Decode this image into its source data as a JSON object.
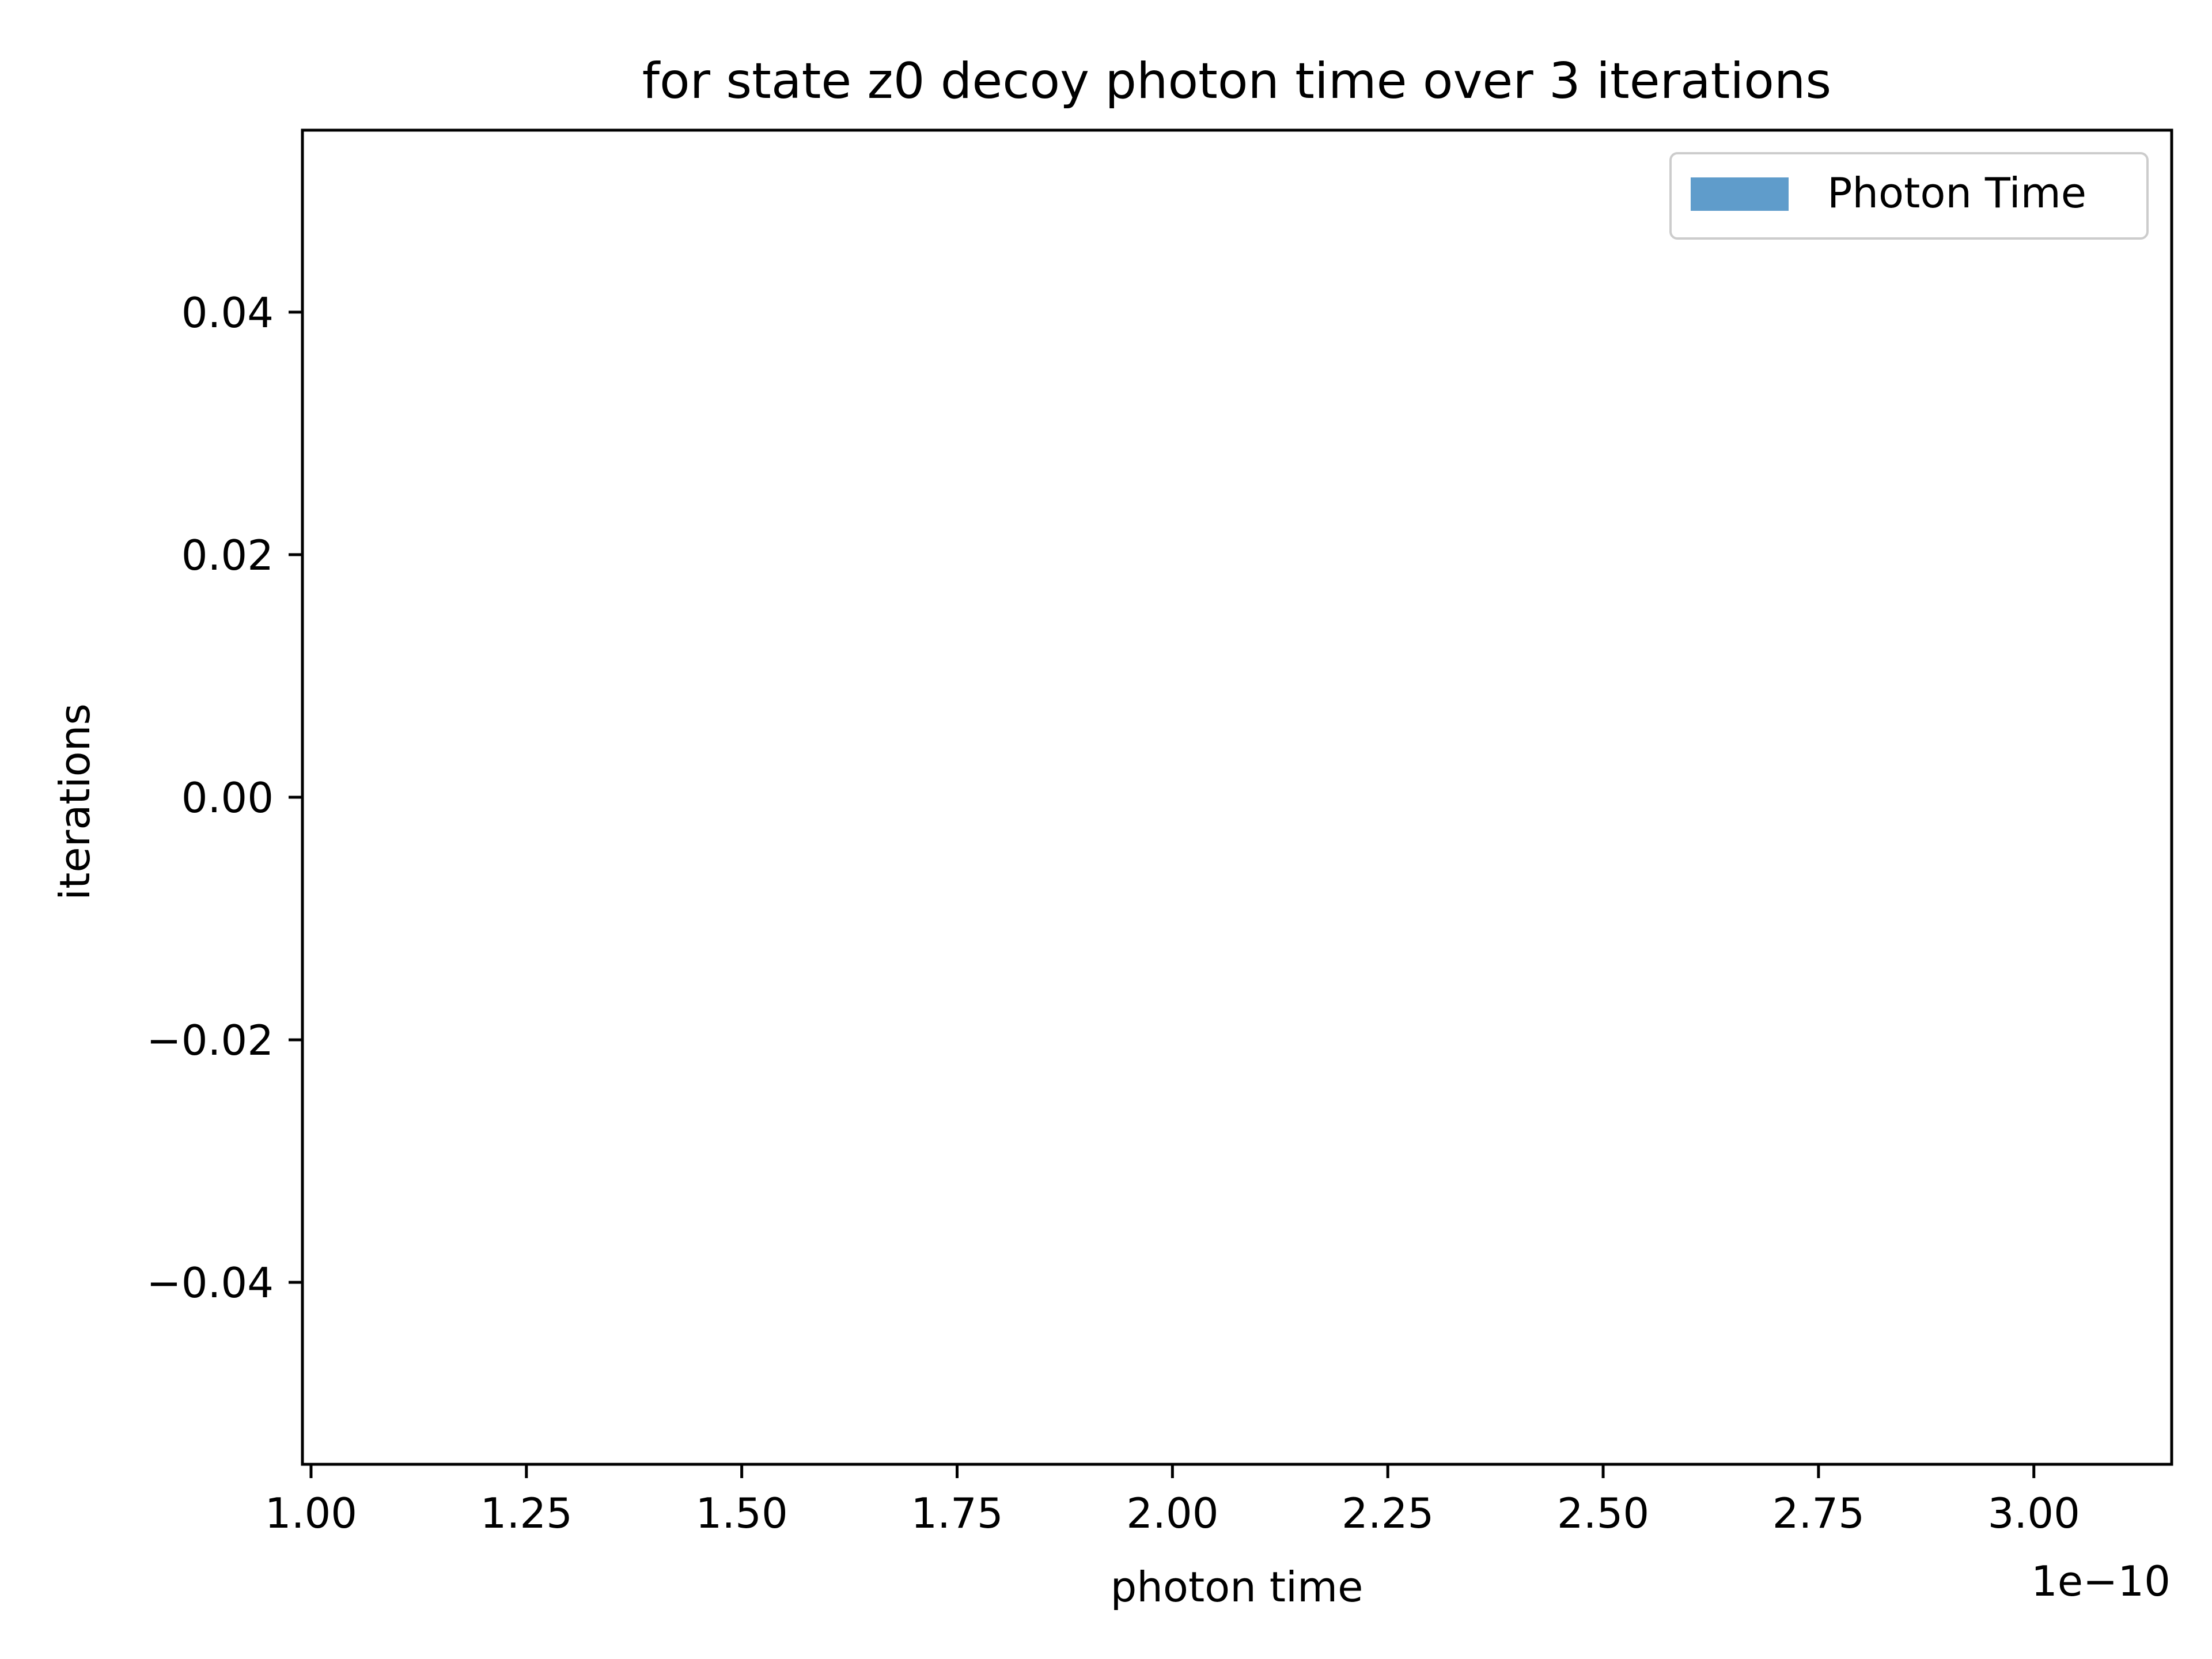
{
  "chart_data": {
    "type": "bar",
    "title": "for state z0 decoy photon time over 3 iterations",
    "xlabel": "photon time",
    "ylabel": "iterations",
    "x_offset_label": "1e−10",
    "xlim": [
      0.99,
      3.16
    ],
    "ylim": [
      -0.055,
      0.055
    ],
    "x_ticks": [
      {
        "value": 1.0,
        "label": "1.00"
      },
      {
        "value": 1.25,
        "label": "1.25"
      },
      {
        "value": 1.5,
        "label": "1.50"
      },
      {
        "value": 1.75,
        "label": "1.75"
      },
      {
        "value": 2.0,
        "label": "2.00"
      },
      {
        "value": 2.25,
        "label": "2.25"
      },
      {
        "value": 2.5,
        "label": "2.50"
      },
      {
        "value": 2.75,
        "label": "2.75"
      },
      {
        "value": 3.0,
        "label": "3.00"
      }
    ],
    "y_ticks": [
      {
        "value": 0.04,
        "label": "0.04"
      },
      {
        "value": 0.02,
        "label": "0.02"
      },
      {
        "value": 0.0,
        "label": "0.00"
      },
      {
        "value": -0.02,
        "label": "−0.02"
      },
      {
        "value": -0.04,
        "label": "−0.04"
      }
    ],
    "series": [
      {
        "name": "Photon Time",
        "color": "#5f9ccb",
        "values": []
      }
    ],
    "legend_position": "top-right",
    "grid": false
  }
}
